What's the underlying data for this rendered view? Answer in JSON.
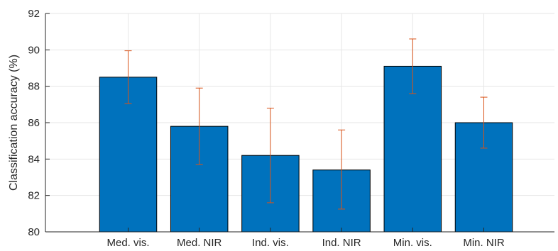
{
  "chart_data": {
    "type": "bar",
    "title": "",
    "xlabel": "",
    "ylabel": "Classification accuracy (%)",
    "ylim": [
      80,
      92
    ],
    "yticks": [
      80,
      82,
      84,
      86,
      88,
      90,
      92
    ],
    "grid": true,
    "categories": [
      "Med. vis.",
      "Med. NIR",
      "Ind. vis.",
      "Ind. NIR",
      "Min. vis.",
      "Min. NIR"
    ],
    "values": [
      88.5,
      85.8,
      84.2,
      83.4,
      89.1,
      86.0
    ],
    "error_low": [
      87.05,
      83.7,
      81.6,
      81.25,
      87.6,
      84.6
    ],
    "error_high": [
      89.95,
      87.9,
      86.8,
      85.6,
      90.6,
      87.4
    ],
    "colors": {
      "bar": "#0072BD",
      "bar_edge": "#000000",
      "error": "#D95319",
      "grid": "#e6e6e6",
      "axis": "#262626"
    }
  }
}
